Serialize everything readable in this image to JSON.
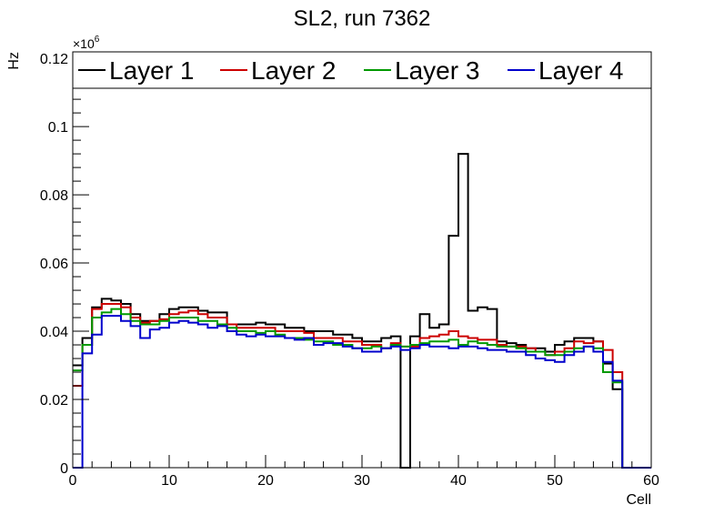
{
  "chart_data": {
    "type": "line",
    "style": "step-histogram",
    "title": "SL2, run 7362",
    "xlabel": "Cell",
    "ylabel": "Hz",
    "y_multiplier_label": "×10",
    "y_multiplier_exp": "6",
    "xlim": [
      0,
      60
    ],
    "ylim": [
      0,
      0.1219
    ],
    "x_ticks": [
      0,
      10,
      20,
      30,
      40,
      50,
      60
    ],
    "x_tick_labels": [
      "0",
      "10",
      "20",
      "30",
      "40",
      "50",
      "60"
    ],
    "y_ticks": [
      0,
      0.02,
      0.04,
      0.06,
      0.08,
      0.1,
      0.12
    ],
    "y_tick_labels": [
      "0",
      "0.02",
      "0.04",
      "0.06",
      "0.08",
      "0.1",
      "0.12"
    ],
    "grid": false,
    "legend_position": "top",
    "bin_width": 1,
    "series": [
      {
        "name": "Layer 1",
        "color": "#000000",
        "values": [
          0.03,
          0.038,
          0.047,
          0.0495,
          0.049,
          0.048,
          0.045,
          0.043,
          0.043,
          0.045,
          0.0465,
          0.047,
          0.047,
          0.046,
          0.0455,
          0.0455,
          0.042,
          0.042,
          0.042,
          0.0425,
          0.042,
          0.042,
          0.041,
          0.041,
          0.04,
          0.04,
          0.04,
          0.039,
          0.039,
          0.038,
          0.037,
          0.037,
          0.038,
          0.0385,
          0,
          0.0385,
          0.045,
          0.041,
          0.042,
          0.068,
          0.092,
          0.046,
          0.047,
          0.0465,
          0.037,
          0.0365,
          0.036,
          0.035,
          0.035,
          0.034,
          0.036,
          0.037,
          0.038,
          0.038,
          0.037,
          0.0305,
          0.023,
          0,
          0,
          0
        ]
      },
      {
        "name": "Layer 2",
        "color": "#cc0000",
        "values": [
          0.024,
          0.036,
          0.0465,
          0.048,
          0.048,
          0.047,
          0.044,
          0.0425,
          0.043,
          0.0435,
          0.045,
          0.0455,
          0.046,
          0.045,
          0.044,
          0.044,
          0.042,
          0.041,
          0.041,
          0.041,
          0.041,
          0.04,
          0.04,
          0.04,
          0.0395,
          0.038,
          0.038,
          0.038,
          0.037,
          0.037,
          0.036,
          0.036,
          0.035,
          0.0365,
          0.0355,
          0.0355,
          0.038,
          0.0385,
          0.039,
          0.04,
          0.0385,
          0.038,
          0.0375,
          0.0375,
          0.036,
          0.0355,
          0.0355,
          0.035,
          0.034,
          0.033,
          0.034,
          0.035,
          0.037,
          0.0365,
          0.037,
          0.0345,
          0.028,
          0,
          0,
          0
        ]
      },
      {
        "name": "Layer 3",
        "color": "#009900",
        "values": [
          0.0285,
          0.036,
          0.044,
          0.0455,
          0.0465,
          0.045,
          0.043,
          0.042,
          0.042,
          0.043,
          0.044,
          0.044,
          0.044,
          0.043,
          0.043,
          0.042,
          0.041,
          0.04,
          0.04,
          0.0395,
          0.04,
          0.039,
          0.038,
          0.038,
          0.0375,
          0.037,
          0.037,
          0.036,
          0.036,
          0.035,
          0.035,
          0.0355,
          0.035,
          0.036,
          0.0355,
          0.036,
          0.0365,
          0.037,
          0.037,
          0.0375,
          0.036,
          0.037,
          0.0365,
          0.036,
          0.0355,
          0.0355,
          0.035,
          0.034,
          0.034,
          0.033,
          0.033,
          0.034,
          0.035,
          0.0355,
          0.035,
          0.028,
          0.025,
          0,
          0,
          0
        ]
      },
      {
        "name": "Layer 4",
        "color": "#0000cc",
        "values": [
          0,
          0.0335,
          0.039,
          0.0445,
          0.0445,
          0.043,
          0.0415,
          0.038,
          0.0405,
          0.041,
          0.0425,
          0.043,
          0.0425,
          0.042,
          0.041,
          0.0415,
          0.04,
          0.039,
          0.0385,
          0.039,
          0.0385,
          0.0385,
          0.038,
          0.0375,
          0.038,
          0.036,
          0.0365,
          0.0365,
          0.0355,
          0.035,
          0.034,
          0.034,
          0.035,
          0.0355,
          0.0345,
          0.035,
          0.036,
          0.0355,
          0.0355,
          0.035,
          0.0355,
          0.0355,
          0.035,
          0.0345,
          0.0345,
          0.034,
          0.034,
          0.033,
          0.032,
          0.0315,
          0.031,
          0.033,
          0.034,
          0.0355,
          0.034,
          0.031,
          0.0255,
          0,
          0,
          0
        ]
      }
    ]
  }
}
